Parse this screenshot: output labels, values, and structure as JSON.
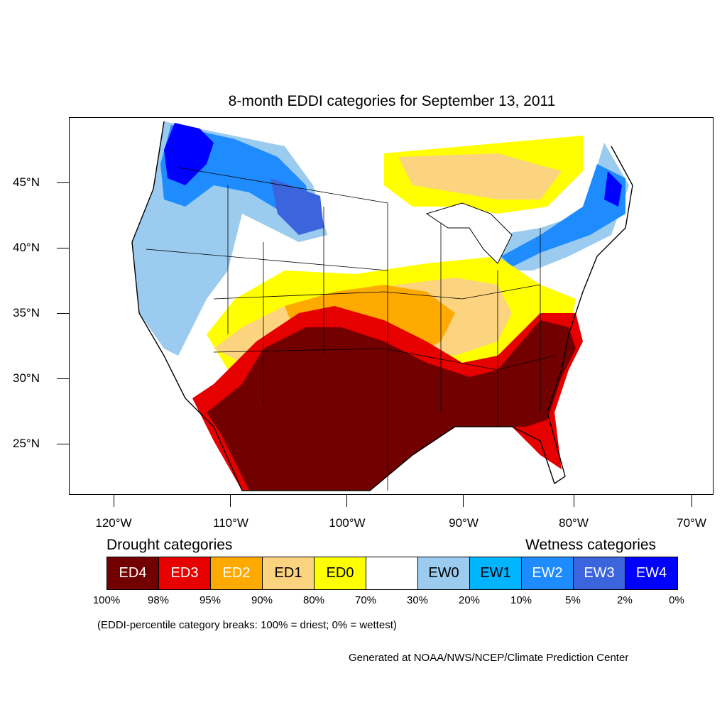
{
  "title": "8-month EDDI categories for September 13, 2011",
  "map": {
    "y_ticks": [
      "45°N",
      "40°N",
      "35°N",
      "30°N",
      "25°N"
    ],
    "x_ticks": [
      "120°W",
      "110°W",
      "100°W",
      "90°W",
      "80°W",
      "70°W"
    ]
  },
  "legend": {
    "drought_title": "Drought categories",
    "wetness_title": "Wetness categories",
    "categories": [
      {
        "label": "ED4",
        "color": "#730000",
        "text_color": "#ffffff"
      },
      {
        "label": "ED3",
        "color": "#e60000",
        "text_color": "#ffffff"
      },
      {
        "label": "ED2",
        "color": "#ffaa00",
        "text_color": "#ffffff"
      },
      {
        "label": "ED1",
        "color": "#fcd37f",
        "text_color": "#000000"
      },
      {
        "label": "ED0",
        "color": "#ffff00",
        "text_color": "#000000"
      },
      {
        "label": "",
        "color": "#ffffff",
        "text_color": "#000000"
      },
      {
        "label": "EW0",
        "color": "#9bcbee",
        "text_color": "#000000"
      },
      {
        "label": "EW1",
        "color": "#00b4ff",
        "text_color": "#000000"
      },
      {
        "label": "EW2",
        "color": "#1e8cff",
        "text_color": "#ffffff"
      },
      {
        "label": "EW3",
        "color": "#3c64dc",
        "text_color": "#ffffff"
      },
      {
        "label": "EW4",
        "color": "#0000ff",
        "text_color": "#ffffff"
      }
    ],
    "breaks": [
      "100%",
      "98%",
      "95%",
      "90%",
      "80%",
      "70%",
      "30%",
      "20%",
      "10%",
      "5%",
      "2%",
      "0%"
    ]
  },
  "note": "(EDDI-percentile category breaks: 100% = driest; 0% = wettest)",
  "credit": "Generated at NOAA/NWS/NCEP/Climate Prediction Center"
}
